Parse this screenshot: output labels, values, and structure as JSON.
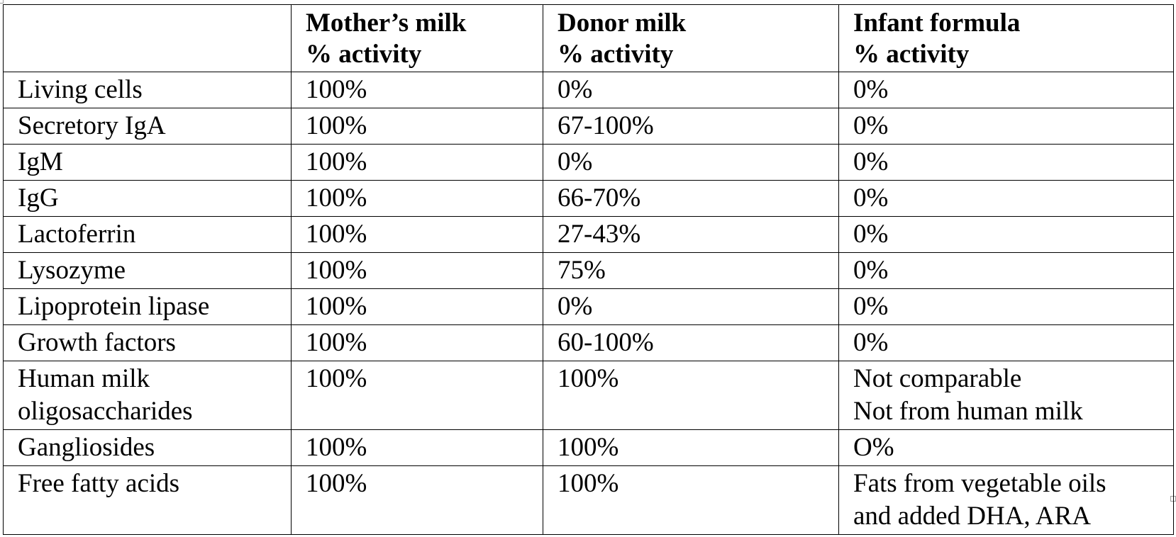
{
  "table": {
    "headers": [
      {
        "lines": []
      },
      {
        "lines": [
          "Mother’s milk",
          "% activity"
        ]
      },
      {
        "lines": [
          "Donor milk",
          "% activity"
        ]
      },
      {
        "lines": [
          "Infant formula",
          "% activity"
        ]
      }
    ],
    "rows": [
      {
        "component": [
          "Living cells"
        ],
        "mothers_milk": [
          "100%"
        ],
        "donor_milk": [
          "0%"
        ],
        "infant_formula": [
          "0%"
        ]
      },
      {
        "component": [
          "Secretory IgA"
        ],
        "mothers_milk": [
          "100%"
        ],
        "donor_milk": [
          "67-100%"
        ],
        "infant_formula": [
          "0%"
        ]
      },
      {
        "component": [
          "IgM"
        ],
        "mothers_milk": [
          "100%"
        ],
        "donor_milk": [
          "0%"
        ],
        "infant_formula": [
          "0%"
        ]
      },
      {
        "component": [
          "IgG"
        ],
        "mothers_milk": [
          "100%"
        ],
        "donor_milk": [
          "66-70%"
        ],
        "infant_formula": [
          "0%"
        ]
      },
      {
        "component": [
          "Lactoferrin"
        ],
        "mothers_milk": [
          "100%"
        ],
        "donor_milk": [
          "27-43%"
        ],
        "infant_formula": [
          "0%"
        ]
      },
      {
        "component": [
          "Lysozyme"
        ],
        "mothers_milk": [
          "100%"
        ],
        "donor_milk": [
          "75%"
        ],
        "infant_formula": [
          "0%"
        ]
      },
      {
        "component": [
          "Lipoprotein lipase"
        ],
        "mothers_milk": [
          "100%"
        ],
        "donor_milk": [
          "0%"
        ],
        "infant_formula": [
          "0%"
        ]
      },
      {
        "component": [
          "Growth factors"
        ],
        "mothers_milk": [
          "100%"
        ],
        "donor_milk": [
          "60-100%"
        ],
        "infant_formula": [
          "0%"
        ]
      },
      {
        "component": [
          "Human milk",
          "oligosaccharides"
        ],
        "mothers_milk": [
          "100%"
        ],
        "donor_milk": [
          "100%"
        ],
        "infant_formula": [
          "Not comparable",
          "Not from human milk"
        ]
      },
      {
        "component": [
          "Gangliosides"
        ],
        "mothers_milk": [
          "100%"
        ],
        "donor_milk": [
          "100%"
        ],
        "infant_formula": [
          "O%"
        ]
      },
      {
        "component": [
          "Free fatty acids"
        ],
        "mothers_milk": [
          "100%"
        ],
        "donor_milk": [
          "100%"
        ],
        "infant_formula": [
          "Fats from vegetable oils",
          "and added DHA, ARA"
        ]
      }
    ]
  }
}
